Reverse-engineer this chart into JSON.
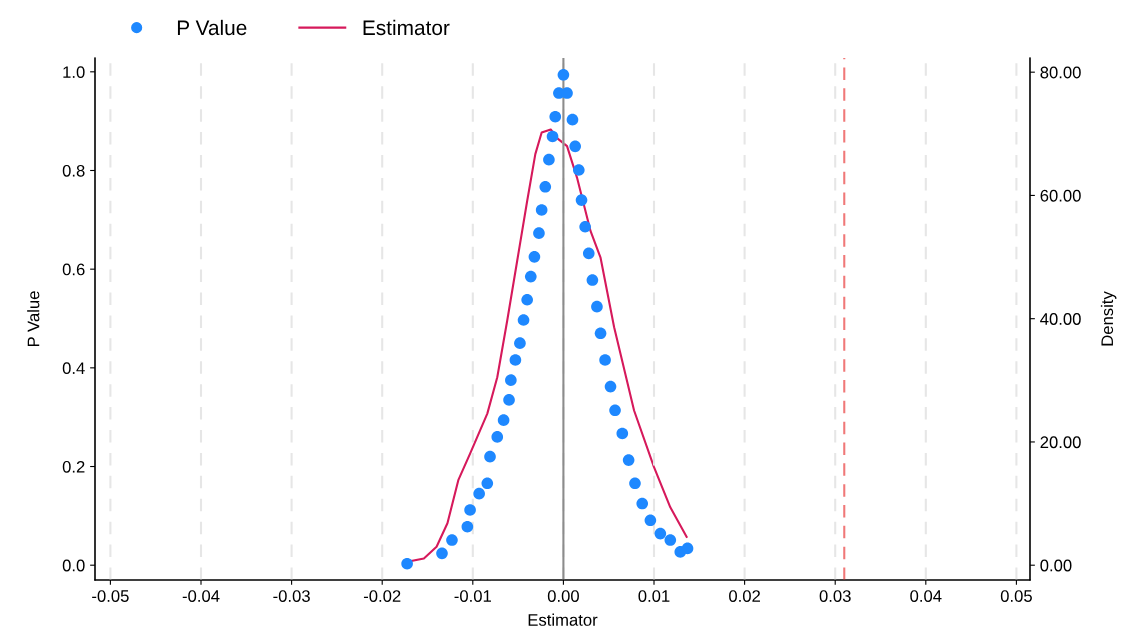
{
  "chart_data": {
    "type": "scatter",
    "xlabel": "Estimator",
    "ylabel": "P Value",
    "y2label": "Density",
    "series": [
      {
        "name": "P Value",
        "color": "#1e88ff",
        "marker": "circle",
        "x": [
          -0.01725,
          -0.0134,
          -0.0123,
          -0.0106,
          -0.0103,
          -0.0093,
          -0.0084,
          -0.0081,
          -0.0073,
          -0.0066,
          -0.006,
          -0.0058,
          -0.0053,
          -0.0048,
          -0.0044,
          -0.004,
          -0.0036,
          -0.0032,
          -0.0027,
          -0.0024,
          -0.002,
          -0.0016,
          -0.0012,
          -0.0009,
          -0.0005,
          0.0,
          0.0004,
          0.001,
          0.0013,
          0.0017,
          0.002,
          0.0024,
          0.0028,
          0.0032,
          0.0037,
          0.0041,
          0.0046,
          0.0052,
          0.0057,
          0.0065,
          0.0072,
          0.0079,
          0.0087,
          0.0096,
          0.0107,
          0.0118,
          0.0129,
          0.0137
        ],
        "values": [
          0.003,
          0.024,
          0.051,
          0.078,
          0.112,
          0.145,
          0.166,
          0.22,
          0.26,
          0.294,
          0.335,
          0.375,
          0.416,
          0.45,
          0.497,
          0.538,
          0.585,
          0.625,
          0.673,
          0.72,
          0.767,
          0.822,
          0.869,
          0.909,
          0.957,
          0.994,
          0.957,
          0.903,
          0.849,
          0.801,
          0.74,
          0.686,
          0.632,
          0.578,
          0.524,
          0.47,
          0.416,
          0.362,
          0.314,
          0.267,
          0.213,
          0.166,
          0.125,
          0.091,
          0.064,
          0.051,
          0.027,
          0.034
        ]
      },
      {
        "name": "Estimator",
        "type": "line",
        "axis": "y2",
        "color": "#d6195b",
        "marker": "none",
        "line_style": "solid",
        "x": [
          -0.0171,
          -0.0154,
          -0.014,
          -0.0128,
          -0.0116,
          -0.0103,
          -0.0084,
          -0.0073,
          -0.0062,
          -0.0051,
          -0.004,
          -0.0031,
          -0.0024,
          -0.0014,
          -0.0007,
          0.0004,
          0.0015,
          0.003,
          0.0041,
          0.0056,
          0.0078,
          0.01,
          0.0118,
          0.0136
        ],
        "values": [
          0.6,
          1.1,
          3.0,
          6.8,
          13.8,
          18.1,
          24.6,
          30.5,
          39.7,
          49.4,
          59.1,
          66.7,
          70.2,
          70.7,
          69.3,
          68.0,
          62.9,
          54.2,
          49.9,
          38.6,
          25.1,
          15.9,
          9.4,
          4.6
        ]
      }
    ],
    "xlim": [
      -0.0517,
      0.0515
    ],
    "xticks": [
      {
        "value": -0.05,
        "label": "-0.05"
      },
      {
        "value": -0.04,
        "label": "-0.04"
      },
      {
        "value": -0.03,
        "label": "-0.03"
      },
      {
        "value": -0.02,
        "label": "-0.02"
      },
      {
        "value": -0.01,
        "label": "-0.01"
      },
      {
        "value": 0,
        "label": "0.00"
      },
      {
        "value": 0.01,
        "label": "0.01"
      },
      {
        "value": 0.02,
        "label": "0.02"
      },
      {
        "value": 0.03,
        "label": "0.03"
      },
      {
        "value": 0.04,
        "label": "0.04"
      },
      {
        "value": 0.05,
        "label": "0.05"
      }
    ],
    "ylim": [
      -0.03,
      1.028
    ],
    "yticks": [
      {
        "value": 0,
        "label": "0.0"
      },
      {
        "value": 0.2,
        "label": "0.2"
      },
      {
        "value": 0.4,
        "label": "0.4"
      },
      {
        "value": 0.6,
        "label": "0.6"
      },
      {
        "value": 0.8,
        "label": "0.8"
      },
      {
        "value": 1,
        "label": "1.0"
      }
    ],
    "y2lim": [
      -2.4,
      82.3
    ],
    "y2ticks": [
      {
        "value": 0,
        "label": "0.00"
      },
      {
        "value": 20,
        "label": "20.00"
      },
      {
        "value": 40,
        "label": "40.00"
      },
      {
        "value": 60,
        "label": "60.00"
      },
      {
        "value": 80,
        "label": "80.00"
      }
    ],
    "ref_lines": [
      {
        "axis": "x",
        "value": 0,
        "color": "#8c8c8c",
        "line_style": "solid"
      },
      {
        "axis": "x",
        "value": 0.031,
        "color": "#f07878",
        "line_style": "dashed"
      }
    ],
    "grid": "x",
    "legend": "top left"
  }
}
